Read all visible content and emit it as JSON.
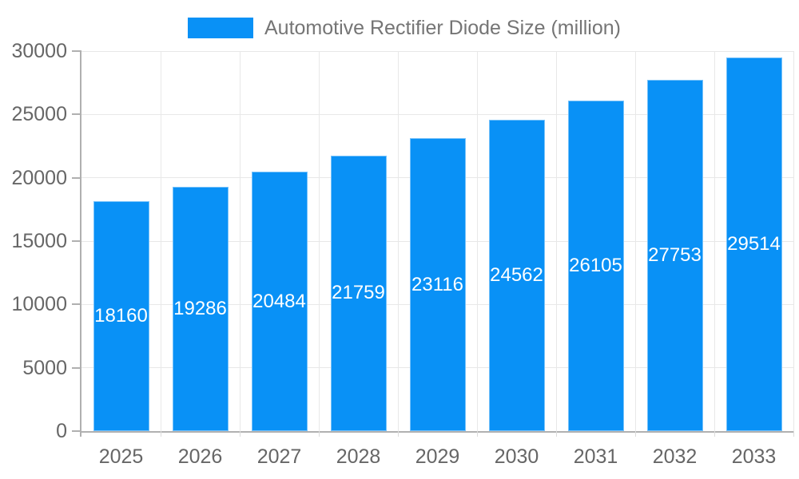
{
  "chart_data": {
    "type": "bar",
    "title": "Automotive Rectifier Diode Size (million)",
    "series_name": "Automotive Rectifier Diode Size (million)",
    "categories": [
      "2025",
      "2026",
      "2027",
      "2028",
      "2029",
      "2030",
      "2031",
      "2032",
      "2033"
    ],
    "values": [
      18160,
      19286,
      20484,
      21759,
      23116,
      24562,
      26105,
      27753,
      29514
    ],
    "xlabel": "",
    "ylabel": "",
    "ylim": [
      0,
      30000
    ],
    "yticks": [
      0,
      5000,
      10000,
      15000,
      20000,
      25000,
      30000
    ],
    "grid": true,
    "legend_position": "top",
    "colors": {
      "bar": "#0991f6",
      "bar_value_label": "#ffffff",
      "axis_line": "#b0b0b0",
      "gridline": "#e8e8e8",
      "tick_text": "#666666",
      "legend_text": "#757575",
      "background": "#ffffff"
    }
  }
}
